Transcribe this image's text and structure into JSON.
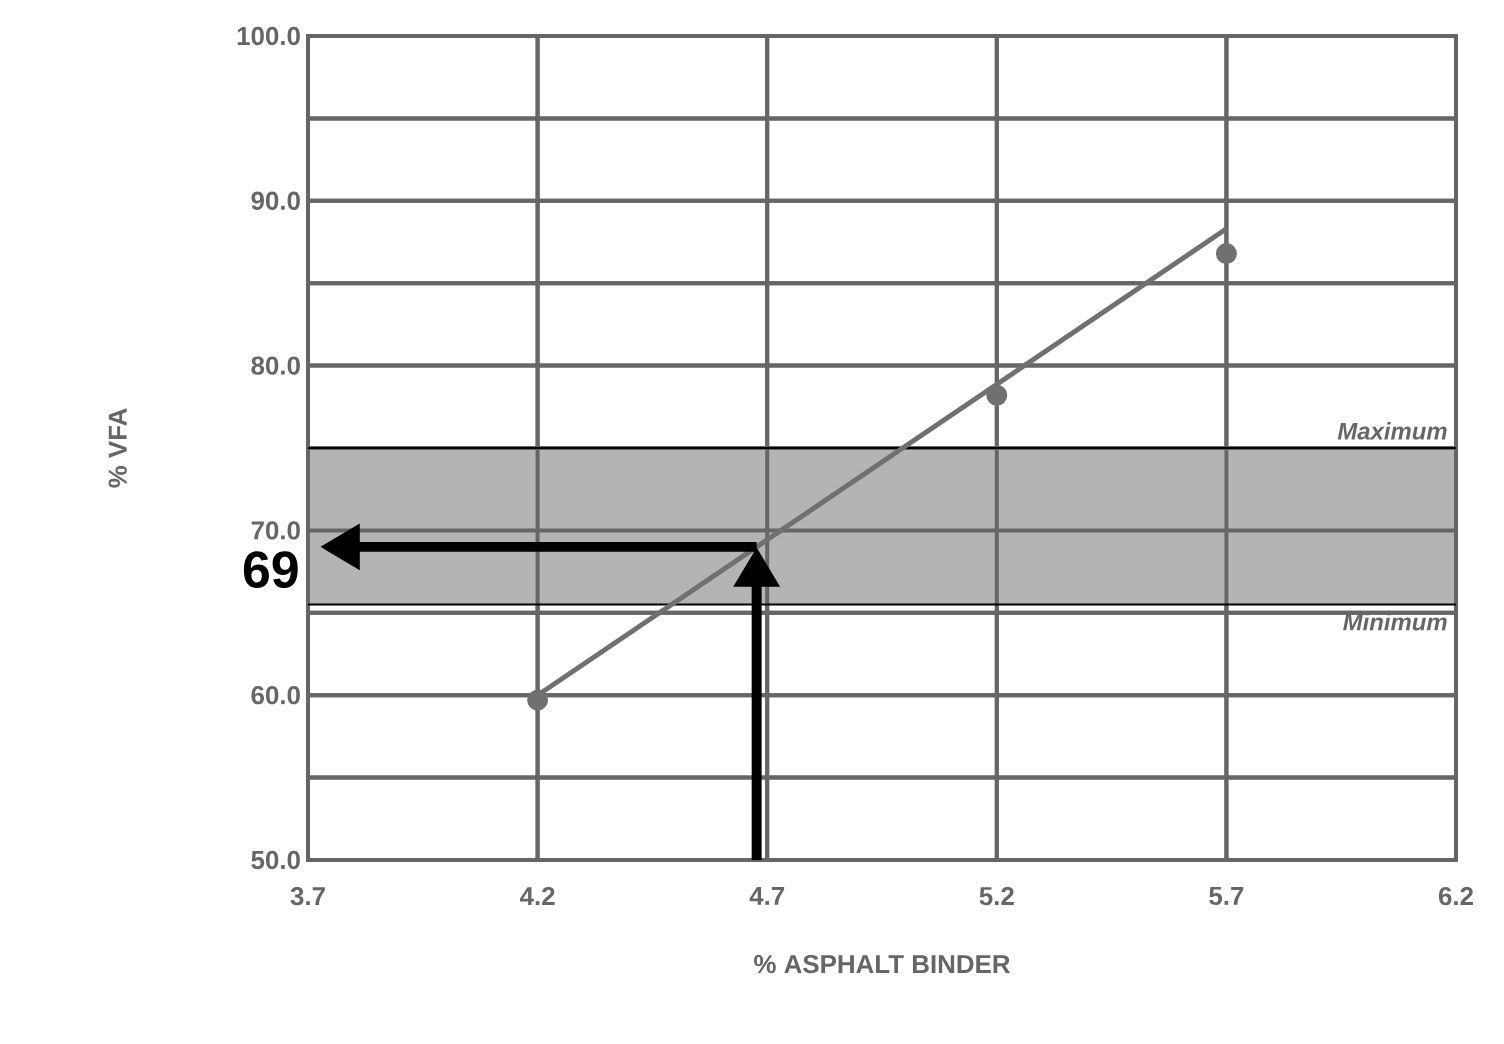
{
  "chart_data": {
    "type": "scatter",
    "xlabel": "% ASPHALT BINDER",
    "ylabel": "% VFA",
    "xlim": [
      3.7,
      6.2
    ],
    "ylim": [
      50,
      100
    ],
    "xticks": [
      3.7,
      4.2,
      4.7,
      5.2,
      5.7,
      6.2
    ],
    "yticks": [
      {
        "value": 50,
        "label": "50.0"
      },
      {
        "value": 55,
        "label": null
      },
      {
        "value": 60,
        "label": "60.0"
      },
      {
        "value": 65,
        "label": null
      },
      {
        "value": 70,
        "label": "70.0"
      },
      {
        "value": 75,
        "label": null
      },
      {
        "value": 80,
        "label": "80.0"
      },
      {
        "value": 85,
        "label": null
      },
      {
        "value": 90,
        "label": "90.0"
      },
      {
        "value": 95,
        "label": null
      },
      {
        "value": 100,
        "label": "100.0"
      }
    ],
    "grid": true,
    "series": [
      {
        "color": "#707070",
        "x": [
          4.2,
          5.2,
          5.7
        ],
        "values": [
          59.7,
          78.2,
          86.8
        ]
      },
      {
        "type": "line",
        "color": "#707070",
        "x": [
          4.2,
          5.7
        ],
        "values": [
          60,
          88.3
        ]
      }
    ],
    "bands": [
      {
        "axis": "y",
        "from": 65.5,
        "to": 75,
        "color": "#b4b4b4"
      }
    ],
    "ref_lines": [
      {
        "axis": "y",
        "value": 75,
        "label": "Maximum",
        "color": "#000000"
      },
      {
        "axis": "y",
        "value": 65.5,
        "label": "Minimum",
        "color": "#000000"
      }
    ],
    "annotations": [
      {
        "text": "69",
        "x": 3.7,
        "y": 69
      }
    ]
  }
}
